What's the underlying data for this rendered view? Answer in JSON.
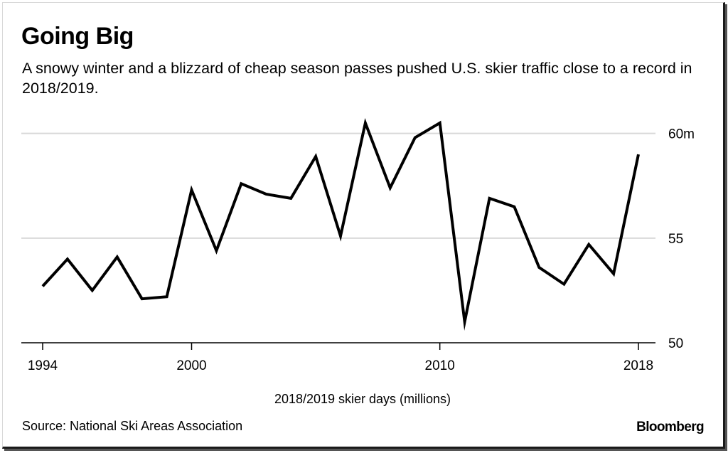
{
  "header": {
    "title": "Going Big",
    "subtitle": "A snowy winter and a blizzard of cheap season passes pushed U.S. skier traffic close to a record in 2018/2019."
  },
  "footer": {
    "source": "Source: National Ski Areas Association",
    "brand": "Bloomberg"
  },
  "colors": {
    "line": "#000000",
    "grid": "#d9d9d9",
    "axis": "#000000"
  },
  "chart_data": {
    "type": "line",
    "title": "Going Big",
    "subtitle": "A snowy winter and a blizzard of cheap season passes pushed U.S. skier traffic close to a record in 2018/2019.",
    "xlabel": "2018/2019 skier days (millions)",
    "ylabel": "",
    "xlim": [
      1994,
      2018
    ],
    "ylim": [
      50,
      60.6
    ],
    "x_ticks": [
      1994,
      2000,
      2010,
      2018
    ],
    "x_tick_labels": [
      "1994",
      "2000",
      "2010",
      "2018"
    ],
    "y_ticks": [
      50,
      55,
      60
    ],
    "y_tick_labels": [
      "50",
      "55",
      "60m"
    ],
    "y_axis_side": "right",
    "grid": "horizontal",
    "legend": "none",
    "series": [
      {
        "x": [
          1994,
          1995,
          1996,
          1997,
          1998,
          1999,
          2000,
          2001,
          2002,
          2003,
          2004,
          2005,
          2006,
          2007,
          2008,
          2009,
          2010,
          2011,
          2012,
          2013,
          2014,
          2015,
          2016,
          2017,
          2018
        ],
        "values": [
          52.7,
          54.0,
          52.5,
          54.1,
          52.1,
          52.2,
          57.3,
          54.4,
          57.6,
          57.1,
          56.9,
          58.9,
          55.1,
          60.5,
          57.4,
          59.8,
          60.5,
          51.0,
          56.9,
          56.5,
          53.6,
          52.8,
          54.7,
          53.3,
          59.0
        ]
      }
    ]
  }
}
